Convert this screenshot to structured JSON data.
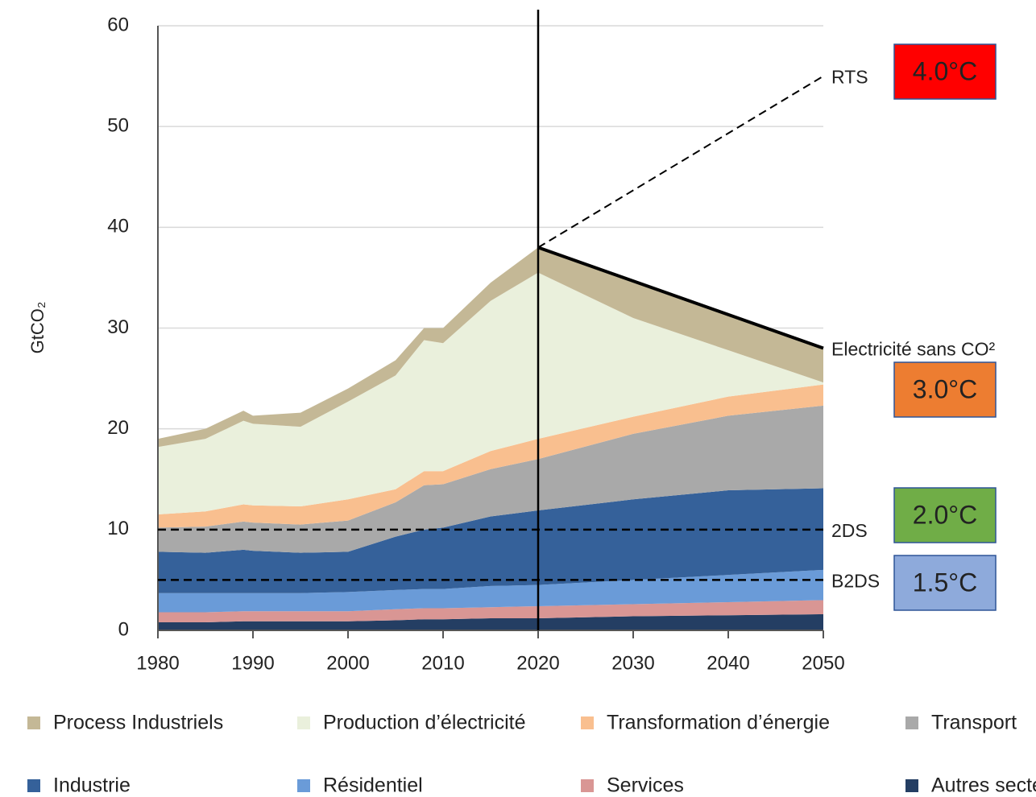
{
  "chart_data": {
    "type": "stacked_area",
    "y_label": "GtCO₂",
    "x": [
      1980,
      1985,
      1989,
      1990,
      1995,
      2000,
      2005,
      2008,
      2010,
      2015,
      2020,
      2030,
      2040,
      2050
    ],
    "series": [
      {
        "name": "Autres secteurs",
        "color": "#243e63",
        "values": [
          0.8,
          0.8,
          0.9,
          0.9,
          0.9,
          0.9,
          1.0,
          1.1,
          1.1,
          1.2,
          1.2,
          1.4,
          1.5,
          1.6
        ]
      },
      {
        "name": "Services",
        "color": "#d99694",
        "values": [
          1.0,
          1.0,
          1.0,
          1.0,
          1.0,
          1.0,
          1.1,
          1.1,
          1.1,
          1.1,
          1.2,
          1.2,
          1.3,
          1.4
        ]
      },
      {
        "name": "Résidentiel",
        "color": "#6a9bd8",
        "values": [
          1.9,
          1.9,
          1.8,
          1.8,
          1.8,
          1.9,
          1.9,
          1.9,
          1.9,
          2.1,
          2.1,
          2.4,
          2.7,
          3.0
        ]
      },
      {
        "name": "Industrie",
        "color": "#35619a",
        "values": [
          4.1,
          4.0,
          4.3,
          4.2,
          4.0,
          4.0,
          5.3,
          5.9,
          6.1,
          6.9,
          7.4,
          8.0,
          8.4,
          8.1
        ]
      },
      {
        "name": "Transport",
        "color": "#a9a9a9",
        "values": [
          2.4,
          2.6,
          2.8,
          2.8,
          2.8,
          3.1,
          3.4,
          4.4,
          4.3,
          4.7,
          5.1,
          6.5,
          7.4,
          8.2
        ]
      },
      {
        "name": "Transformation d’énergie",
        "color": "#f9bf8f",
        "values": [
          1.3,
          1.5,
          1.7,
          1.7,
          1.8,
          2.1,
          1.3,
          1.4,
          1.3,
          1.8,
          2.0,
          1.7,
          1.9,
          2.1
        ]
      },
      {
        "name": "Production d’électricité",
        "color": "#eaf0dc",
        "values": [
          6.7,
          7.2,
          8.3,
          8.1,
          7.9,
          9.7,
          11.3,
          13.0,
          12.7,
          14.9,
          16.5,
          9.8,
          4.6,
          0.2
        ]
      },
      {
        "name": "Process Industriels",
        "color": "#c4b896",
        "values": [
          0.8,
          1.0,
          1.0,
          0.8,
          1.4,
          1.3,
          1.5,
          1.2,
          1.5,
          1.8,
          2.5,
          3.5,
          3.4,
          3.4
        ]
      }
    ],
    "legend_order": [
      7,
      6,
      5,
      4,
      3,
      2,
      1,
      0
    ],
    "lines": [
      {
        "name": "RTS",
        "x": [
          2020,
          2050
        ],
        "values": [
          38,
          55
        ],
        "style": "dashed",
        "width": 2
      },
      {
        "name": "Electricité sans CO²",
        "x": [
          2020,
          2050
        ],
        "values": [
          38,
          28
        ],
        "style": "solid",
        "width": 4
      },
      {
        "name": "2DS",
        "x": [
          1980,
          2050
        ],
        "values": [
          10,
          10
        ],
        "style": "dashed",
        "width": 2.5
      },
      {
        "name": "B2DS",
        "x": [
          1980,
          2050
        ],
        "values": [
          5,
          5
        ],
        "style": "dashed",
        "width": 2.5
      }
    ],
    "temperature_labels": [
      {
        "label": "4.0°C",
        "color": "#ff0000"
      },
      {
        "label": "3.0°C",
        "color": "#ed7d31"
      },
      {
        "label": "2.0°C",
        "color": "#70ad47"
      },
      {
        "label": "1.5°C",
        "color": "#8eaadb"
      }
    ],
    "divider_x": 2020,
    "xlim": [
      1980,
      2050
    ],
    "xticks": [
      1980,
      1990,
      2000,
      2010,
      2020,
      2030,
      2040,
      2050
    ],
    "ylim": [
      0,
      60
    ],
    "yticks": [
      0,
      10,
      20,
      30,
      40,
      50,
      60
    ],
    "grid": true
  }
}
